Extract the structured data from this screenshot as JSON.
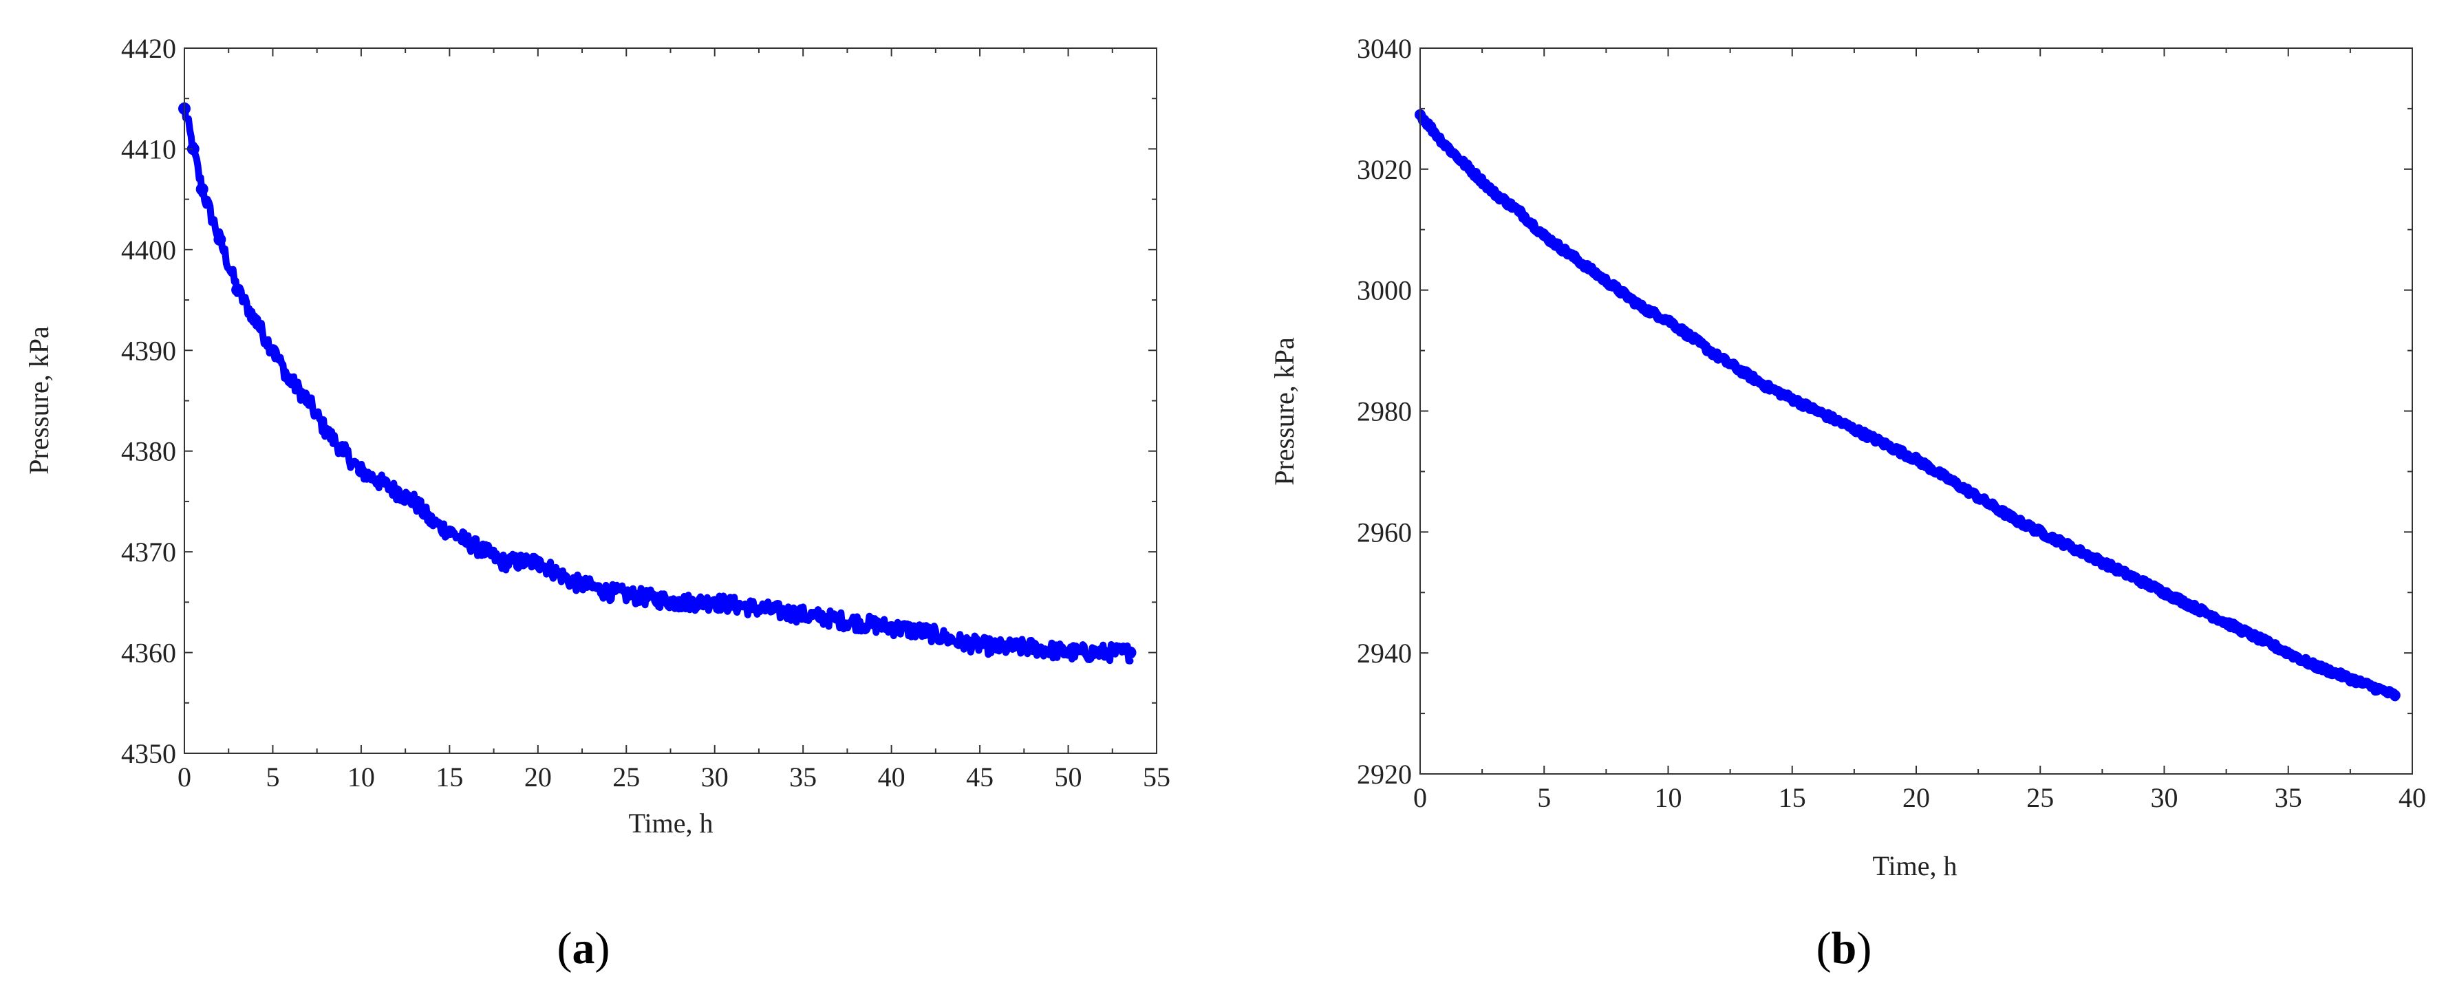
{
  "chart_data": [
    {
      "type": "scatter",
      "panel": "a",
      "xlabel": "Time, h",
      "ylabel": "Pressure, kPa",
      "xlim": [
        0,
        55
      ],
      "ylim": [
        4350,
        4420
      ],
      "xticks": [
        0,
        5,
        10,
        15,
        20,
        25,
        30,
        35,
        40,
        45,
        50,
        55
      ],
      "yticks": [
        4350,
        4360,
        4370,
        4380,
        4390,
        4400,
        4410,
        4420
      ],
      "series": [
        {
          "color": "#0000ff",
          "x": [
            0,
            0.5,
            1,
            2,
            3,
            4,
            5,
            6,
            7,
            8,
            9,
            10,
            11,
            12,
            13,
            14,
            15,
            16,
            17,
            18,
            19,
            20,
            22,
            24,
            26,
            28,
            30,
            32,
            34,
            36,
            38,
            40,
            42,
            44,
            46,
            48,
            50,
            52,
            53.5
          ],
          "values": [
            4414,
            4410,
            4406,
            4401,
            4396,
            4393,
            4390,
            4387,
            4385,
            4382,
            4380,
            4378,
            4377,
            4376,
            4375,
            4373,
            4372,
            4371,
            4370,
            4369,
            4369,
            4369,
            4367,
            4366,
            4365.5,
            4365,
            4365,
            4364.5,
            4364,
            4363.5,
            4363,
            4362.5,
            4362,
            4361,
            4360.5,
            4360.5,
            4360,
            4360,
            4360
          ]
        }
      ]
    },
    {
      "type": "scatter",
      "panel": "b",
      "xlabel": "Time, h",
      "ylabel": "Pressure, kPa",
      "xlim": [
        0,
        40
      ],
      "ylim": [
        2920,
        3040
      ],
      "xticks": [
        0,
        5,
        10,
        15,
        20,
        25,
        30,
        35,
        40
      ],
      "yticks": [
        2920,
        2940,
        2960,
        2980,
        3000,
        3020,
        3040
      ],
      "series": [
        {
          "color": "#0000ff",
          "x": [
            0,
            1,
            2,
            3,
            4,
            5,
            6,
            7,
            8,
            9,
            10,
            12,
            14,
            16,
            18,
            20,
            22,
            24,
            26,
            28,
            30,
            32,
            34,
            36,
            38,
            39.3
          ],
          "values": [
            3029,
            3024,
            3020,
            3016,
            3013,
            3009,
            3006,
            3003,
            3000,
            2997,
            2995,
            2989,
            2984,
            2980,
            2976,
            2972,
            2967,
            2962,
            2958,
            2954,
            2950,
            2946,
            2942,
            2938,
            2935,
            2933
          ]
        }
      ]
    }
  ],
  "panel_labels": [
    "a",
    "b"
  ]
}
